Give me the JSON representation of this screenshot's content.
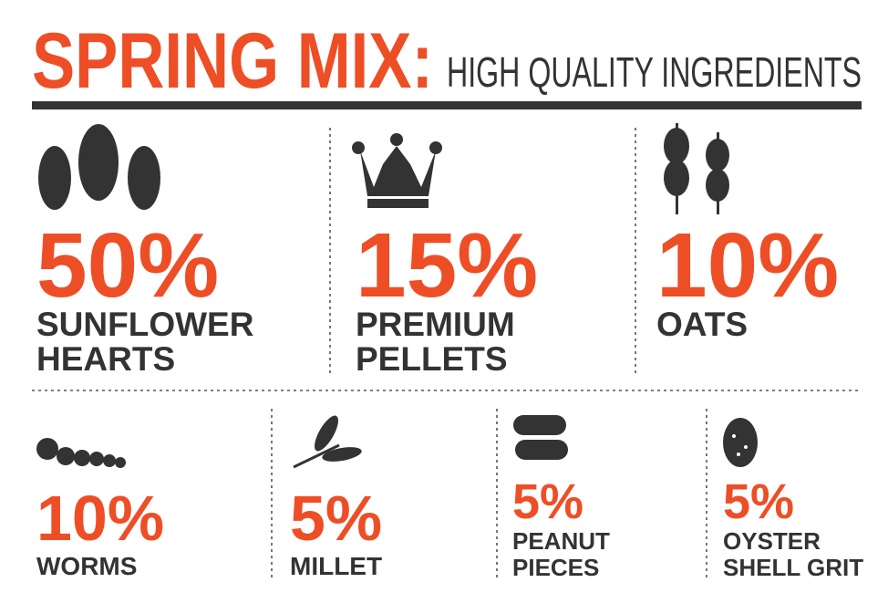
{
  "title": "SPRING MIX:",
  "subtitle": "HIGH QUALITY INGREDIENTS",
  "items": [
    {
      "percent": "50%",
      "name": [
        "SUNFLOWER",
        "HEARTS"
      ]
    },
    {
      "percent": "15%",
      "name": [
        "PREMIUM",
        "PELLETS"
      ]
    },
    {
      "percent": "10%",
      "name": [
        "OATS"
      ]
    },
    {
      "percent": "10%",
      "name": [
        "WORMS"
      ]
    },
    {
      "percent": "5%",
      "name": [
        "MILLET"
      ]
    },
    {
      "percent": "5%",
      "name": [
        "PEANUT",
        "PIECES"
      ]
    },
    {
      "percent": "5%",
      "name": [
        "OYSTER",
        "SHELL GRIT"
      ]
    }
  ]
}
